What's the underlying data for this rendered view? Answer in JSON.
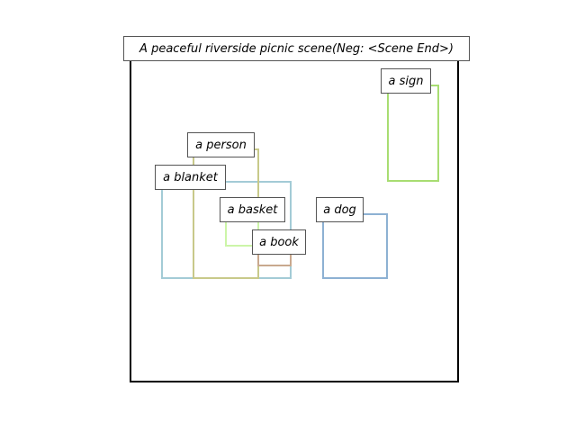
{
  "title": "A peaceful riverside picnic scene(Neg: <Scene End>)",
  "objects": [
    {
      "id": "blanket",
      "label": "a blanket",
      "color": "#a3cbd6"
    },
    {
      "id": "person",
      "label": "a person",
      "color": "#c8c98a"
    },
    {
      "id": "basket",
      "label": "a basket",
      "color": "#ccf5a8"
    },
    {
      "id": "book",
      "label": "a book",
      "color": "#c9a98e"
    },
    {
      "id": "dog",
      "label": "a dog",
      "color": "#8db1d3"
    },
    {
      "id": "sign",
      "label": "a sign",
      "color": "#a8dd72"
    }
  ]
}
